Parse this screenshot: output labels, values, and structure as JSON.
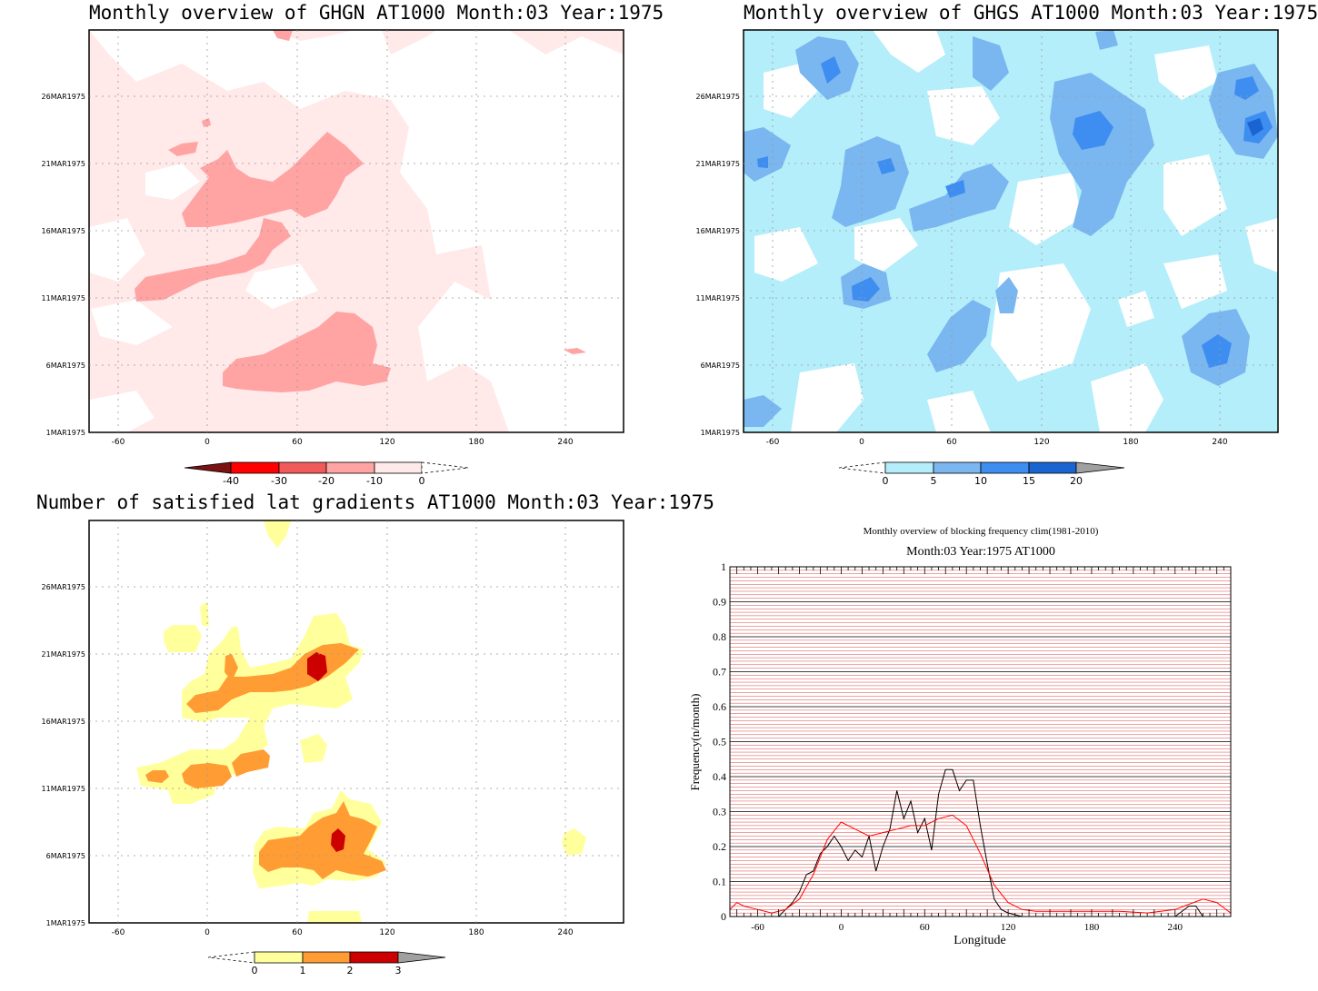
{
  "panels": {
    "ghgn": {
      "title": "Monthly overview of GHGN AT1000 Month:03 Year:1975"
    },
    "ghgs": {
      "title": "Monthly overview of GHGS AT1000 Month:03 Year:1975"
    },
    "latgrad": {
      "title": "Number of satisfied lat gradients AT1000 Month:03 Year:1975"
    },
    "blocking": {
      "title": "Monthly overview of blocking frequency clim(1981-2010)",
      "subtitle": "Month:03 Year:1975  AT1000"
    }
  },
  "hovmoller": {
    "x_ticks": [
      "-60",
      "0",
      "60",
      "120",
      "180",
      "240"
    ],
    "y_ticks": [
      "1MAR1975",
      "6MAR1975",
      "11MAR1975",
      "16MAR1975",
      "21MAR1975",
      "26MAR1975"
    ]
  },
  "colorbars": {
    "ghgn": {
      "labels": [
        "-40",
        "-30",
        "-20",
        "-10",
        "0"
      ],
      "colors": [
        "#7a1212",
        "#ff0000",
        "#f25a5a",
        "#ffa3a3",
        "#ffe9e9"
      ]
    },
    "ghgs": {
      "labels": [
        "0",
        "5",
        "10",
        "15",
        "20"
      ],
      "colors": [
        "#b4eefa",
        "#7ab6f0",
        "#3d8ef0",
        "#1a64d2",
        "#a0a0a0"
      ]
    },
    "latgrad": {
      "labels": [
        "0",
        "1",
        "2",
        "3"
      ],
      "colors": [
        "#ffff9c",
        "#ff9c33",
        "#cc0000",
        "#a0a0a0"
      ]
    }
  },
  "chart_data": {
    "type": "line",
    "title": "Monthly overview of blocking frequency clim(1981-2010)",
    "subtitle": "Month:03 Year:1975  AT1000",
    "xlabel": "Longitude",
    "ylabel": "Frequency(n/month)",
    "xlim": [
      -80,
      280
    ],
    "ylim": [
      0,
      1
    ],
    "x_ticks": [
      "-60",
      "0",
      "60",
      "120",
      "180",
      "240"
    ],
    "y_ticks": [
      "0",
      "0.1",
      "0.2",
      "0.3",
      "0.4",
      "0.5",
      "0.6",
      "0.7",
      "0.8",
      "0.9",
      "1"
    ],
    "series": [
      {
        "color": "#000000",
        "x": [
          -80,
          -60,
          -45,
          -40,
          -35,
          -30,
          -25,
          -20,
          -15,
          -10,
          -5,
          0,
          5,
          10,
          15,
          20,
          25,
          30,
          35,
          40,
          45,
          50,
          55,
          60,
          65,
          70,
          75,
          80,
          85,
          90,
          95,
          100,
          105,
          110,
          115,
          120,
          130,
          240,
          250,
          255,
          260,
          280
        ],
        "y": [
          0,
          0,
          0,
          0.02,
          0.04,
          0.07,
          0.12,
          0.13,
          0.18,
          0.2,
          0.23,
          0.2,
          0.16,
          0.19,
          0.17,
          0.23,
          0.13,
          0.2,
          0.25,
          0.36,
          0.28,
          0.33,
          0.24,
          0.28,
          0.19,
          0.35,
          0.42,
          0.42,
          0.36,
          0.39,
          0.39,
          0.26,
          0.15,
          0.05,
          0.02,
          0.01,
          0,
          0,
          0.03,
          0.03,
          0,
          0
        ]
      },
      {
        "color": "#ff0000",
        "x": [
          -80,
          -75,
          -70,
          -60,
          -50,
          -40,
          -30,
          -20,
          -10,
          0,
          10,
          20,
          30,
          40,
          50,
          60,
          70,
          80,
          90,
          100,
          110,
          120,
          130,
          140,
          160,
          180,
          200,
          220,
          240,
          250,
          260,
          270,
          280
        ],
        "y": [
          0.02,
          0.04,
          0.03,
          0.02,
          0.01,
          0.02,
          0.05,
          0.12,
          0.22,
          0.27,
          0.25,
          0.23,
          0.24,
          0.25,
          0.26,
          0.26,
          0.28,
          0.29,
          0.26,
          0.18,
          0.09,
          0.04,
          0.02,
          0.015,
          0.015,
          0.015,
          0.015,
          0.01,
          0.02,
          0.035,
          0.05,
          0.04,
          0.01
        ]
      }
    ]
  }
}
